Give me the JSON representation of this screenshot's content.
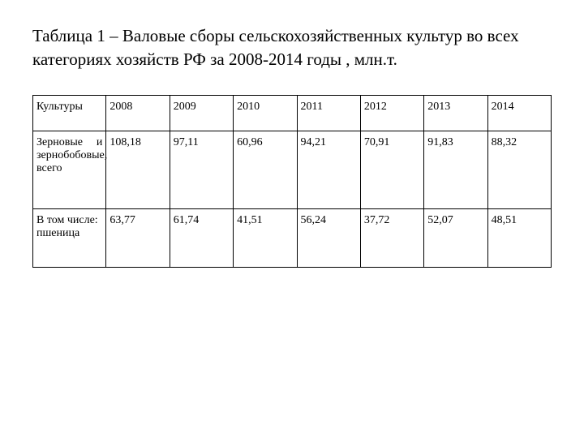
{
  "title": "Таблица 1 – Валовые сборы сельскохозяйственных культур во всех категориях хозяйств РФ за 2008-2014 годы , млн.т.",
  "table": {
    "columns": [
      "Культуры",
      "2008",
      "2009",
      "2010",
      "2011",
      "2012",
      "2013",
      "2014"
    ],
    "rows": [
      {
        "label": "Зерновые и зернобобовые, всего",
        "values": [
          "108,18",
          "97,11",
          "60,96",
          "94,21",
          "70,91",
          "91,83",
          "88,32"
        ]
      },
      {
        "label": "В том числе: пшеница",
        "values": [
          "63,77",
          "61,74",
          "41,51",
          "56,24",
          "37,72",
          "52,07",
          "48,51"
        ]
      }
    ],
    "border_color": "#000000",
    "background_color": "#ffffff",
    "text_color": "#000000",
    "title_fontsize": 21,
    "cell_fontsize": 14,
    "col_widths": {
      "first": 90,
      "data": 78
    }
  }
}
